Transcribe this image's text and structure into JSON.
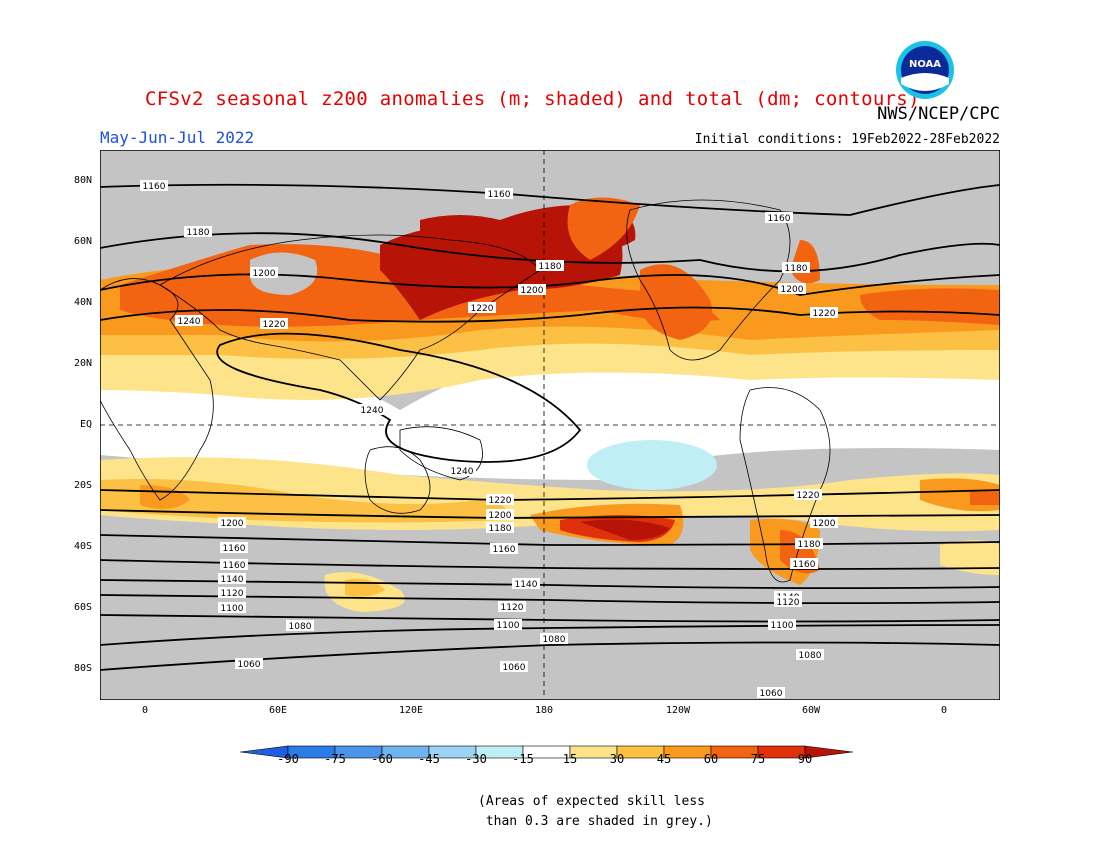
{
  "title": "CFSv2 seasonal z200 anomalies (m; shaded) and total (dm; contours)",
  "agency": "NWS/NCEP/CPC",
  "logo_text": "NOAA",
  "season": "May-Jun-Jul 2022",
  "initial_conditions": "Initial conditions: 19Feb2022-28Feb2022",
  "lat_labels": [
    "80N",
    "60N",
    "40N",
    "20N",
    "EQ",
    "20S",
    "40S",
    "60S",
    "80S"
  ],
  "lon_labels": [
    "0",
    "60E",
    "120E",
    "180",
    "120W",
    "60W",
    "0"
  ],
  "colorbar": {
    "labels": [
      "-90",
      "-75",
      "-60",
      "-45",
      "-30",
      "-15",
      "15",
      "30",
      "45",
      "60",
      "75",
      "90"
    ],
    "colors": [
      "#1f5ee0",
      "#2b7ae6",
      "#4a95ea",
      "#6fb3ef",
      "#9cd3f2",
      "#bfeef5",
      "#ffffff",
      "#fde48a",
      "#fcc044",
      "#f99a1f",
      "#f26412",
      "#e0300c",
      "#b81307"
    ]
  },
  "contour_labels": [
    "1160",
    "1180",
    "1200",
    "1220",
    "1240",
    "1120",
    "1140",
    "1100",
    "1080",
    "1060"
  ],
  "note": "(Areas of expected skill less\n than 0.3 are shaded in grey.)",
  "colors": {
    "title": "#e60000",
    "season": "#2050e0",
    "grey_low_skill": "#c4c4c4",
    "land_outline": "#000000"
  }
}
